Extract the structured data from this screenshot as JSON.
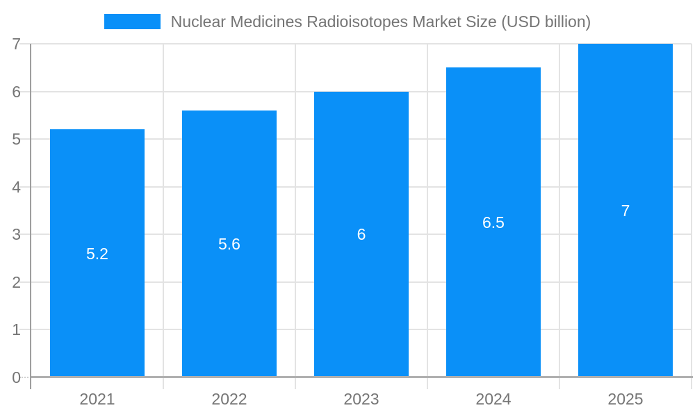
{
  "chart_data": {
    "type": "bar",
    "title": "Nuclear Medicines Radioisotopes Market Size (USD billion)",
    "legend": {
      "position": "top",
      "label": "Nuclear Medicines Radioisotopes Market Size (USD billion)"
    },
    "categories": [
      "2021",
      "2022",
      "2023",
      "2024",
      "2025"
    ],
    "series": [
      {
        "name": "Nuclear Medicines Radioisotopes Market Size (USD billion)",
        "values": [
          5.2,
          5.6,
          6,
          6.5,
          7
        ],
        "data_labels": [
          "5.2",
          "5.6",
          "6",
          "6.5",
          "7"
        ]
      }
    ],
    "xlabel": "",
    "ylabel": "",
    "ylim": [
      0,
      7
    ],
    "yticks": [
      0,
      1,
      2,
      3,
      4,
      5,
      6,
      7
    ],
    "ytick_labels": [
      "0",
      "1",
      "2",
      "3",
      "4",
      "5",
      "6",
      "7"
    ],
    "grid": "on",
    "colors": {
      "bar": "#0a90f8",
      "gridline": "#e3e3e3",
      "baseline": "#b0b0b0",
      "y_axis_line": "#9e9e9e",
      "axis_text": "#757575",
      "bar_label_text": "#ffffff",
      "background": "#ffffff"
    }
  }
}
